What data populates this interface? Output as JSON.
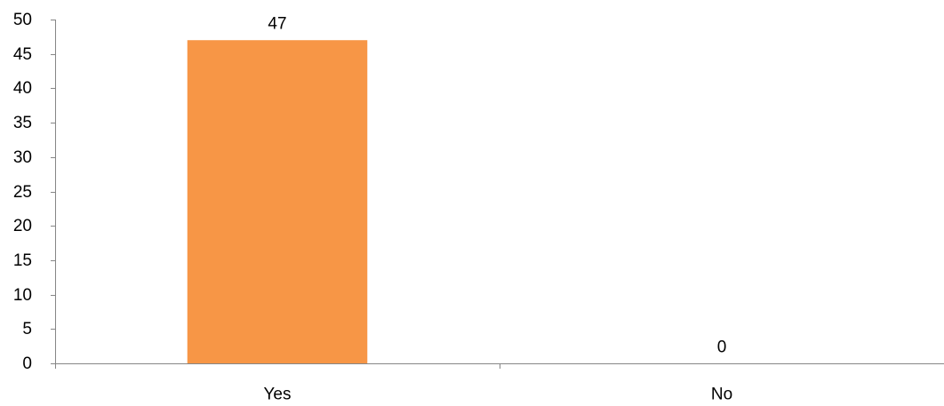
{
  "chart_data": {
    "type": "bar",
    "categories": [
      "Yes",
      "No"
    ],
    "values": [
      47,
      0
    ],
    "data_labels": [
      "47",
      "0"
    ],
    "ylim": [
      0,
      50
    ],
    "yticks": [
      0,
      5,
      10,
      15,
      20,
      25,
      30,
      35,
      40,
      45,
      50
    ],
    "grid": false,
    "legend": "none",
    "bar_color": "#F79646",
    "axis_color": "#868686",
    "text_color": "#000000"
  }
}
